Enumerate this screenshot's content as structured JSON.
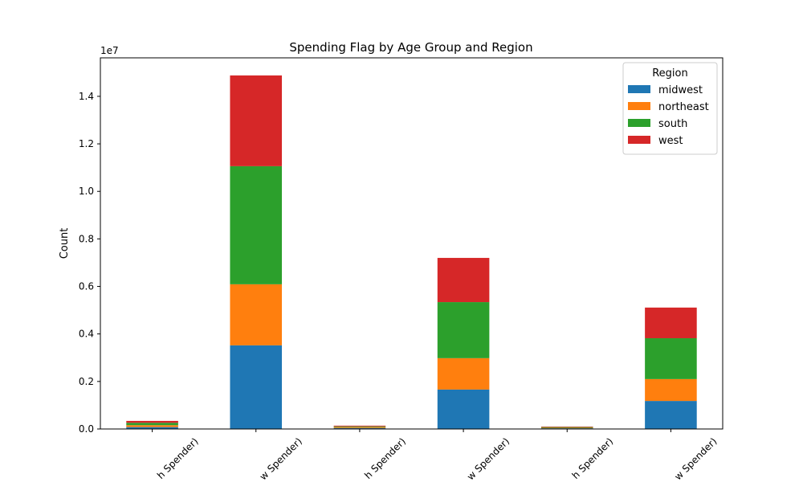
{
  "chart_data": {
    "type": "stacked_bar",
    "title": "Spending Flag by Age Group and Region",
    "y_label": "Count",
    "y_offset_label": "1e7",
    "categories": [
      "h Spender)",
      "w Spender)",
      "h Spender)",
      "w Spender)",
      "h Spender)",
      "w Spender)"
    ],
    "series": [
      {
        "name": "midwest",
        "color": "#1f77b4",
        "values": [
          0.008,
          0.352,
          0.004,
          0.166,
          0.003,
          0.118
        ]
      },
      {
        "name": "northeast",
        "color": "#ff7f0e",
        "values": [
          0.008,
          0.257,
          0.004,
          0.132,
          0.002,
          0.092
        ]
      },
      {
        "name": "south",
        "color": "#2ca02c",
        "values": [
          0.01,
          0.497,
          0.003,
          0.236,
          0.003,
          0.172
        ]
      },
      {
        "name": "west",
        "color": "#d62728",
        "values": [
          0.008,
          0.382,
          0.003,
          0.186,
          0.002,
          0.129
        ]
      }
    ],
    "legend_title": "Region",
    "legend_position": "upper right",
    "ylim": [
      0,
      1.562
    ],
    "yticks": [
      {
        "value": 0,
        "label": "0.0"
      },
      {
        "value": 0.2,
        "label": "0.2"
      },
      {
        "value": 0.4,
        "label": "0.4"
      },
      {
        "value": 0.6,
        "label": "0.6"
      },
      {
        "value": 0.8,
        "label": "0.8"
      },
      {
        "value": 1.0,
        "label": "1.0"
      },
      {
        "value": 1.2,
        "label": "1.2"
      },
      {
        "value": 1.4,
        "label": "1.4"
      }
    ],
    "grid": false
  }
}
